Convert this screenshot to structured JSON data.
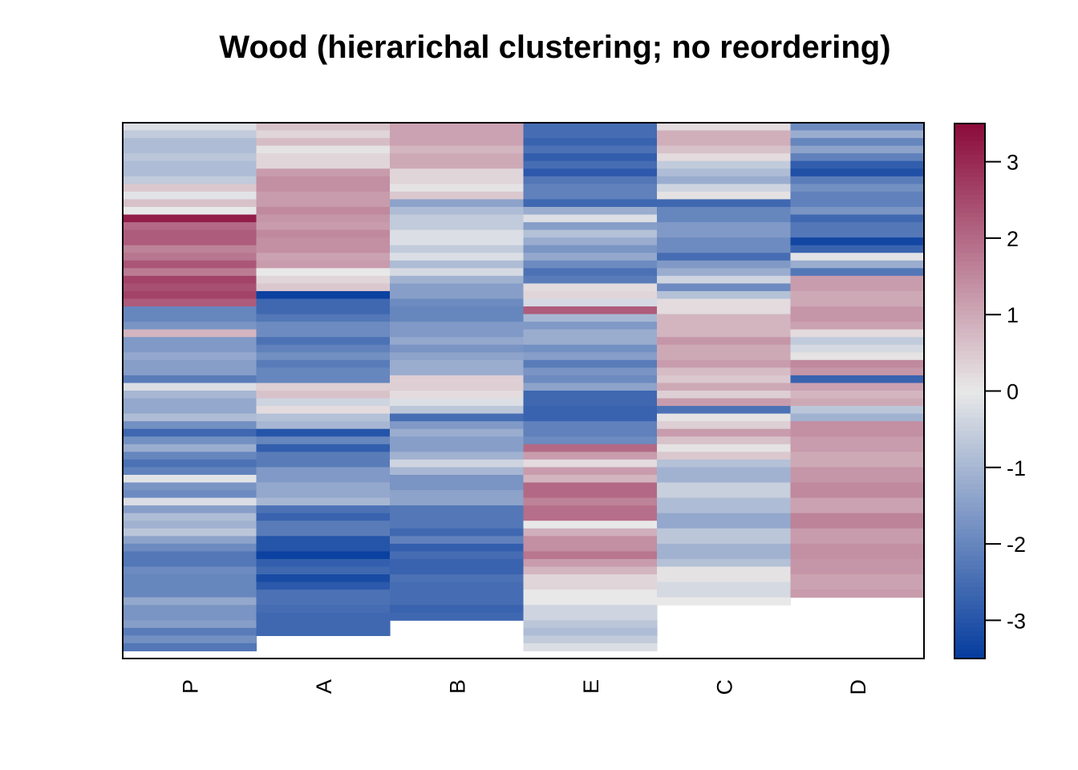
{
  "chart_data": {
    "type": "heatmap",
    "title": "Wood (hierarichal clustering; no reordering)",
    "xlabel": "",
    "ylabel": "",
    "columns": [
      "P",
      "A",
      "B",
      "E",
      "C",
      "D"
    ],
    "n_rows": 70,
    "color_scale": {
      "min": -3.5,
      "max": 3.5,
      "low_color": "#053C9E",
      "mid_color": "#E8E8E8",
      "high_color": "#8B0A3A",
      "ticks": [
        3,
        2,
        1,
        0,
        -1,
        -2,
        -3
      ],
      "tick_labels": [
        "3",
        "2",
        "1",
        "0",
        "-1",
        "-2",
        "-3"
      ]
    },
    "segments": {
      "P": [
        [
          1,
          -0.2
        ],
        [
          1,
          -0.6
        ],
        [
          2,
          -0.9
        ],
        [
          1,
          -0.7
        ],
        [
          2,
          -0.9
        ],
        [
          1,
          -0.6
        ],
        [
          1,
          0.5
        ],
        [
          1,
          -0.1
        ],
        [
          1,
          0.6
        ],
        [
          1,
          0.0
        ],
        [
          1,
          3.2
        ],
        [
          1,
          2.0
        ],
        [
          2,
          2.2
        ],
        [
          1,
          1.6
        ],
        [
          1,
          1.8
        ],
        [
          1,
          2.3
        ],
        [
          1,
          1.7
        ],
        [
          1,
          2.6
        ],
        [
          1,
          2.4
        ],
        [
          1,
          2.6
        ],
        [
          1,
          2.2
        ],
        [
          2,
          -2.0
        ],
        [
          1,
          -1.7
        ],
        [
          1,
          0.8
        ],
        [
          2,
          -1.6
        ],
        [
          1,
          -1.3
        ],
        [
          2,
          -1.5
        ],
        [
          1,
          -2.2
        ],
        [
          1,
          -0.2
        ],
        [
          1,
          -1.0
        ],
        [
          2,
          -1.3
        ],
        [
          1,
          -0.9
        ],
        [
          1,
          -1.8
        ],
        [
          1,
          -2.6
        ],
        [
          1,
          -1.8
        ],
        [
          1,
          -1.2
        ],
        [
          1,
          -2.0
        ],
        [
          1,
          -2.4
        ],
        [
          1,
          -2.1
        ],
        [
          1,
          -0.1
        ],
        [
          1,
          -1.7
        ],
        [
          1,
          -1.9
        ],
        [
          1,
          -0.2
        ],
        [
          1,
          -1.5
        ],
        [
          1,
          -0.9
        ],
        [
          1,
          -1.1
        ],
        [
          1,
          -0.7
        ],
        [
          1,
          -1.4
        ],
        [
          1,
          -1.9
        ],
        [
          2,
          -2.3
        ],
        [
          1,
          -1.9
        ],
        [
          3,
          -2.0
        ],
        [
          1,
          -1.3
        ],
        [
          2,
          -1.7
        ],
        [
          1,
          -1.5
        ],
        [
          1,
          -2.2
        ],
        [
          1,
          -1.8
        ],
        [
          1,
          -2.3
        ]
      ],
      "A": [
        [
          1,
          0.6
        ],
        [
          1,
          0.3
        ],
        [
          1,
          0.7
        ],
        [
          1,
          0.1
        ],
        [
          2,
          0.3
        ],
        [
          1,
          1.2
        ],
        [
          2,
          1.4
        ],
        [
          2,
          1.2
        ],
        [
          1,
          1.5
        ],
        [
          1,
          1.3
        ],
        [
          1,
          1.2
        ],
        [
          1,
          1.5
        ],
        [
          2,
          1.4
        ],
        [
          1,
          1.1
        ],
        [
          1,
          1.2
        ],
        [
          1,
          0.0
        ],
        [
          1,
          0.3
        ],
        [
          1,
          0.5
        ],
        [
          1,
          -3.4
        ],
        [
          2,
          -2.6
        ],
        [
          1,
          -2.3
        ],
        [
          2,
          -1.9
        ],
        [
          1,
          -2.4
        ],
        [
          1,
          -2.1
        ],
        [
          1,
          -1.8
        ],
        [
          1,
          -2.2
        ],
        [
          2,
          -2.0
        ],
        [
          1,
          0.4
        ],
        [
          1,
          0.6
        ],
        [
          1,
          -0.4
        ],
        [
          1,
          0.2
        ],
        [
          1,
          -0.8
        ],
        [
          1,
          -1.0
        ],
        [
          1,
          -3.0
        ],
        [
          1,
          -2.0
        ],
        [
          1,
          -2.8
        ],
        [
          2,
          -2.2
        ],
        [
          2,
          -1.6
        ],
        [
          2,
          -1.3
        ],
        [
          1,
          -1.0
        ],
        [
          1,
          -2.4
        ],
        [
          1,
          -2.7
        ],
        [
          2,
          -2.2
        ],
        [
          2,
          -3.0
        ],
        [
          1,
          -3.4
        ],
        [
          1,
          -2.8
        ],
        [
          1,
          -2.6
        ],
        [
          1,
          -3.2
        ],
        [
          1,
          -2.9
        ],
        [
          2,
          -2.4
        ],
        [
          1,
          -2.5
        ],
        [
          3,
          -2.6
        ]
      ],
      "B": [
        [
          3,
          1.1
        ],
        [
          1,
          0.8
        ],
        [
          2,
          1.0
        ],
        [
          2,
          0.3
        ],
        [
          1,
          0.1
        ],
        [
          1,
          0.5
        ],
        [
          1,
          -1.4
        ],
        [
          1,
          -0.9
        ],
        [
          2,
          -0.6
        ],
        [
          2,
          -0.2
        ],
        [
          1,
          -0.6
        ],
        [
          1,
          -0.2
        ],
        [
          1,
          -0.9
        ],
        [
          1,
          -0.3
        ],
        [
          1,
          -1.1
        ],
        [
          2,
          -1.5
        ],
        [
          1,
          -1.9
        ],
        [
          2,
          -2.0
        ],
        [
          2,
          -1.6
        ],
        [
          1,
          -1.3
        ],
        [
          1,
          -1.7
        ],
        [
          1,
          -1.4
        ],
        [
          2,
          -1.2
        ],
        [
          2,
          0.4
        ],
        [
          1,
          0.2
        ],
        [
          1,
          -0.2
        ],
        [
          1,
          -0.7
        ],
        [
          1,
          -2.5
        ],
        [
          1,
          -1.6
        ],
        [
          1,
          -1.2
        ],
        [
          2,
          -1.5
        ],
        [
          1,
          -1.1
        ],
        [
          1,
          -0.4
        ],
        [
          1,
          -1.0
        ],
        [
          2,
          -1.7
        ],
        [
          2,
          -1.4
        ],
        [
          3,
          -2.3
        ],
        [
          1,
          -2.6
        ],
        [
          1,
          -2.1
        ],
        [
          1,
          -2.8
        ],
        [
          1,
          -2.5
        ],
        [
          2,
          -2.7
        ],
        [
          1,
          -2.4
        ],
        [
          3,
          -2.5
        ],
        [
          1,
          -2.7
        ],
        [
          1,
          -2.6
        ]
      ],
      "E": [
        [
          2,
          -2.5
        ],
        [
          1,
          -2.7
        ],
        [
          1,
          -2.4
        ],
        [
          1,
          -2.8
        ],
        [
          1,
          -2.5
        ],
        [
          1,
          -2.9
        ],
        [
          1,
          -2.3
        ],
        [
          2,
          -2.1
        ],
        [
          1,
          -2.6
        ],
        [
          1,
          -1.2
        ],
        [
          1,
          -0.2
        ],
        [
          1,
          -1.5
        ],
        [
          1,
          -0.8
        ],
        [
          1,
          -1.2
        ],
        [
          1,
          -1.7
        ],
        [
          1,
          -1.3
        ],
        [
          1,
          -1.9
        ],
        [
          1,
          -2.4
        ],
        [
          1,
          -2.2
        ],
        [
          1,
          0.2
        ],
        [
          1,
          0.3
        ],
        [
          1,
          -0.3
        ],
        [
          1,
          2.2
        ],
        [
          1,
          -1.0
        ],
        [
          1,
          -1.6
        ],
        [
          2,
          -1.2
        ],
        [
          1,
          -1.8
        ],
        [
          1,
          -1.5
        ],
        [
          1,
          -2.2
        ],
        [
          1,
          -1.7
        ],
        [
          1,
          -1.9
        ],
        [
          1,
          -1.4
        ],
        [
          2,
          -2.6
        ],
        [
          2,
          -2.7
        ],
        [
          2,
          -2.1
        ],
        [
          1,
          -1.9
        ],
        [
          1,
          2.0
        ],
        [
          1,
          1.2
        ],
        [
          1,
          0.2
        ],
        [
          1,
          1.2
        ],
        [
          1,
          0.8
        ],
        [
          2,
          2.0
        ],
        [
          1,
          1.6
        ],
        [
          2,
          1.9
        ],
        [
          1,
          0.0
        ],
        [
          1,
          0.9
        ],
        [
          2,
          1.4
        ],
        [
          1,
          1.8
        ],
        [
          1,
          1.2
        ],
        [
          1,
          0.8
        ],
        [
          2,
          0.3
        ],
        [
          2,
          0.0
        ],
        [
          2,
          -0.4
        ],
        [
          1,
          -0.7
        ],
        [
          1,
          -0.9
        ],
        [
          1,
          -0.6
        ],
        [
          1,
          -0.2
        ]
      ],
      "C": [
        [
          1,
          0.2
        ],
        [
          2,
          0.9
        ],
        [
          1,
          0.6
        ],
        [
          1,
          0.2
        ],
        [
          1,
          -0.6
        ],
        [
          1,
          -0.9
        ],
        [
          1,
          -1.2
        ],
        [
          1,
          -0.4
        ],
        [
          1,
          0.1
        ],
        [
          1,
          -2.6
        ],
        [
          2,
          -2.0
        ],
        [
          2,
          -1.6
        ],
        [
          2,
          -1.9
        ],
        [
          1,
          -2.5
        ],
        [
          1,
          -1.6
        ],
        [
          1,
          -1.2
        ],
        [
          1,
          -0.4
        ],
        [
          1,
          -1.9
        ],
        [
          1,
          -0.8
        ],
        [
          2,
          0.2
        ],
        [
          3,
          0.8
        ],
        [
          1,
          1.3
        ],
        [
          2,
          1.0
        ],
        [
          1,
          1.2
        ],
        [
          1,
          0.7
        ],
        [
          1,
          0.5
        ],
        [
          1,
          1.0
        ],
        [
          1,
          0.4
        ],
        [
          1,
          1.2
        ],
        [
          1,
          -2.4
        ],
        [
          1,
          0.1
        ],
        [
          1,
          0.4
        ],
        [
          1,
          1.2
        ],
        [
          1,
          0.6
        ],
        [
          1,
          0.1
        ],
        [
          1,
          0.5
        ],
        [
          1,
          -0.8
        ],
        [
          2,
          -1.1
        ],
        [
          2,
          -0.5
        ],
        [
          2,
          -0.9
        ],
        [
          2,
          -1.3
        ],
        [
          2,
          -0.7
        ],
        [
          2,
          -1.1
        ],
        [
          1,
          -0.8
        ],
        [
          2,
          0.1
        ],
        [
          2,
          -0.3
        ],
        [
          1,
          0.0
        ]
      ],
      "D": [
        [
          1,
          -1.9
        ],
        [
          1,
          -1.2
        ],
        [
          1,
          -2.0
        ],
        [
          1,
          -1.4
        ],
        [
          1,
          -2.1
        ],
        [
          1,
          -2.8
        ],
        [
          1,
          -3.1
        ],
        [
          1,
          -2.2
        ],
        [
          1,
          -1.8
        ],
        [
          2,
          -2.1
        ],
        [
          1,
          -1.7
        ],
        [
          1,
          -2.6
        ],
        [
          2,
          -2.3
        ],
        [
          1,
          -3.3
        ],
        [
          1,
          -2.7
        ],
        [
          1,
          -0.1
        ],
        [
          1,
          -1.2
        ],
        [
          1,
          -2.3
        ],
        [
          2,
          1.2
        ],
        [
          2,
          1.0
        ],
        [
          2,
          1.3
        ],
        [
          1,
          1.1
        ],
        [
          1,
          0.2
        ],
        [
          1,
          -0.6
        ],
        [
          1,
          -0.3
        ],
        [
          1,
          0.1
        ],
        [
          1,
          1.5
        ],
        [
          1,
          1.3
        ],
        [
          1,
          -2.7
        ],
        [
          1,
          1.1
        ],
        [
          1,
          0.8
        ],
        [
          1,
          1.0
        ],
        [
          1,
          -0.7
        ],
        [
          1,
          -1.1
        ],
        [
          2,
          1.4
        ],
        [
          2,
          1.2
        ],
        [
          2,
          1.0
        ],
        [
          2,
          1.3
        ],
        [
          2,
          1.5
        ],
        [
          2,
          1.1
        ],
        [
          2,
          1.6
        ],
        [
          2,
          1.2
        ],
        [
          2,
          1.4
        ],
        [
          2,
          1.3
        ],
        [
          2,
          1.1
        ],
        [
          1,
          1.2
        ]
      ]
    }
  }
}
